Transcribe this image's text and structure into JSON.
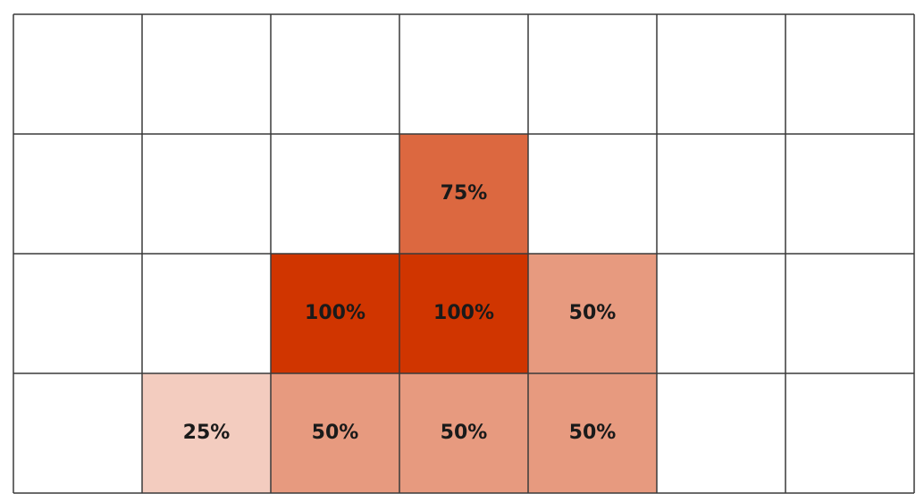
{
  "grid": {
    "color": "#d03500",
    "rows": [
      [
        null,
        null,
        null,
        null,
        null,
        null,
        null
      ],
      [
        null,
        null,
        null,
        "75%",
        null,
        null,
        null
      ],
      [
        null,
        null,
        "100%",
        "100%",
        "50%",
        null,
        null
      ],
      [
        null,
        "25%",
        "50%",
        "50%",
        "50%",
        null,
        null
      ]
    ]
  }
}
